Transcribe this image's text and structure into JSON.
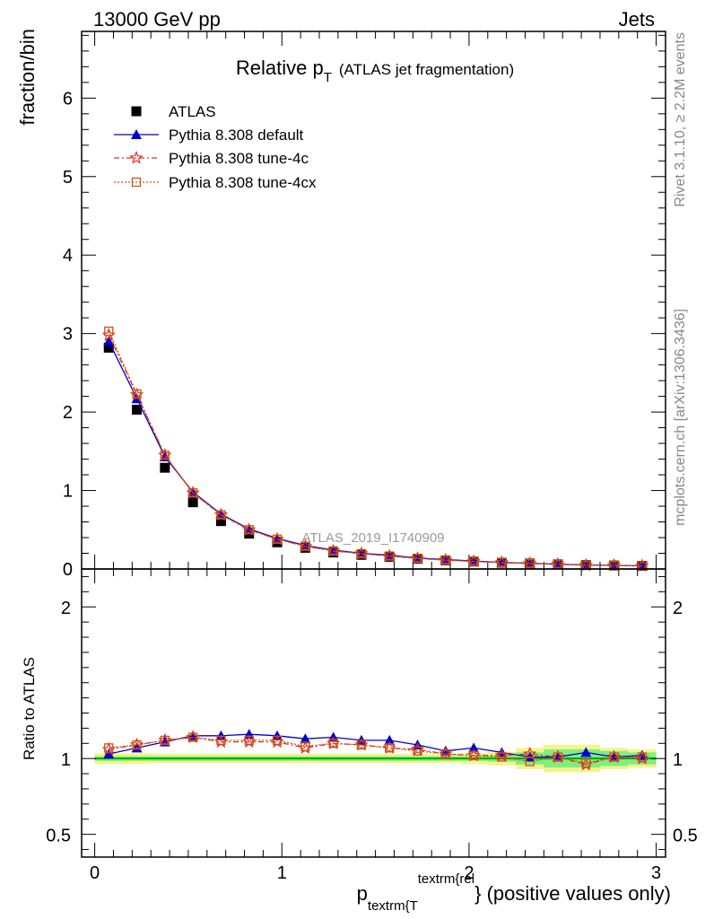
{
  "header": {
    "left": "13000 GeV pp",
    "right": "Jets"
  },
  "side_labels": {
    "rivet": "Rivet 3.1.10, ≥ 2.2M events",
    "mcplots": "mcplots.cern.ch [arXiv:1306.3436]"
  },
  "colors": {
    "atlas": "#000000",
    "default": "#0000cc",
    "tune4c": "#e03020",
    "tune4cx": "#cc5511",
    "band_inner": "#80ee80",
    "band_outer": "#f4f48a",
    "ref_line": "#00aa00"
  },
  "chart_data": [
    {
      "type": "line",
      "title": "Relative p_T (ATLAS jet fragmentation)",
      "title_main": "Relative p",
      "title_sub": "T",
      "title_note": "(ATLAS jet fragmentation)",
      "ylabel": "fraction/bin",
      "xlabel_main": "p",
      "xlabel_sub": "textrm{T",
      "xlabel_sup": "textrm{rel",
      "xlabel_tail": "} (positive values only)",
      "watermark": "ATLAS_2019_I1740909",
      "xlim": [
        -0.07,
        3.05
      ],
      "ylim": [
        0,
        6.85
      ],
      "yticks": [
        "0",
        "1",
        "2",
        "3",
        "4",
        "5",
        "6"
      ],
      "xticks": [
        "0",
        "1",
        "2",
        "3"
      ],
      "grid": false,
      "legend_position": "top-left",
      "x": [
        0.075,
        0.225,
        0.375,
        0.525,
        0.675,
        0.825,
        0.975,
        1.125,
        1.275,
        1.425,
        1.575,
        1.725,
        1.875,
        2.025,
        2.175,
        2.325,
        2.475,
        2.625,
        2.775,
        2.925
      ],
      "series": [
        {
          "name": "ATLAS",
          "marker": "square",
          "values": [
            2.82,
            2.03,
            1.29,
            0.85,
            0.61,
            0.45,
            0.34,
            0.27,
            0.21,
            0.18,
            0.155,
            0.13,
            0.11,
            0.095,
            0.08,
            0.07,
            0.06,
            0.05,
            0.045,
            0.04
          ]
        },
        {
          "name": "Pythia 8.308 default",
          "marker": "triangle",
          "values": [
            2.9,
            2.17,
            1.43,
            0.98,
            0.7,
            0.51,
            0.39,
            0.3,
            0.24,
            0.2,
            0.175,
            0.14,
            0.12,
            0.102,
            0.084,
            0.072,
            0.061,
            0.052,
            0.046,
            0.041
          ]
        },
        {
          "name": "Pythia 8.308 tune-4c",
          "marker": "star",
          "values": [
            2.98,
            2.22,
            1.45,
            0.97,
            0.69,
            0.5,
            0.38,
            0.29,
            0.23,
            0.195,
            0.165,
            0.135,
            0.113,
            0.097,
            0.082,
            0.072,
            0.061,
            0.048,
            0.046,
            0.04
          ]
        },
        {
          "name": "Pythia 8.308 tune-4cx",
          "marker": "open-square",
          "values": [
            3.03,
            2.23,
            1.45,
            0.97,
            0.69,
            0.5,
            0.38,
            0.29,
            0.23,
            0.195,
            0.165,
            0.135,
            0.112,
            0.096,
            0.081,
            0.069,
            0.061,
            0.049,
            0.046,
            0.04
          ]
        }
      ]
    },
    {
      "type": "line",
      "ylabel": "Ratio to ATLAS",
      "ylim": [
        0.35,
        2.25
      ],
      "yticks": [
        "0.5",
        "1",
        "2"
      ],
      "ytick_values": [
        0.5,
        1,
        2
      ],
      "xlim": [
        -0.07,
        3.05
      ],
      "reference": 1,
      "band_inner": [
        0.015,
        0.015,
        0.015,
        0.015,
        0.015,
        0.015,
        0.015,
        0.015,
        0.015,
        0.015,
        0.015,
        0.015,
        0.015,
        0.015,
        0.02,
        0.04,
        0.06,
        0.06,
        0.05,
        0.04
      ],
      "band_outer": [
        0.035,
        0.035,
        0.03,
        0.03,
        0.03,
        0.03,
        0.03,
        0.03,
        0.03,
        0.03,
        0.03,
        0.03,
        0.03,
        0.035,
        0.045,
        0.07,
        0.09,
        0.09,
        0.07,
        0.06
      ],
      "series": [
        {
          "name": "Pythia 8.308 default",
          "values": [
            1.03,
            1.07,
            1.11,
            1.15,
            1.15,
            1.16,
            1.15,
            1.13,
            1.14,
            1.12,
            1.12,
            1.09,
            1.05,
            1.07,
            1.04,
            1.01,
            1.01,
            1.04,
            1.01,
            1.02
          ]
        },
        {
          "name": "Pythia 8.308 tune-4c",
          "values": [
            1.06,
            1.09,
            1.12,
            1.14,
            1.11,
            1.11,
            1.11,
            1.07,
            1.1,
            1.09,
            1.07,
            1.06,
            1.03,
            1.02,
            1.02,
            1.03,
            1.01,
            0.96,
            1.01,
            1.0
          ]
        },
        {
          "name": "Pythia 8.308 tune-4cx",
          "values": [
            1.07,
            1.09,
            1.12,
            1.14,
            1.12,
            1.12,
            1.12,
            1.08,
            1.1,
            1.09,
            1.07,
            1.05,
            1.03,
            1.02,
            1.01,
            0.98,
            1.01,
            0.97,
            1.01,
            1.01
          ]
        }
      ]
    }
  ]
}
